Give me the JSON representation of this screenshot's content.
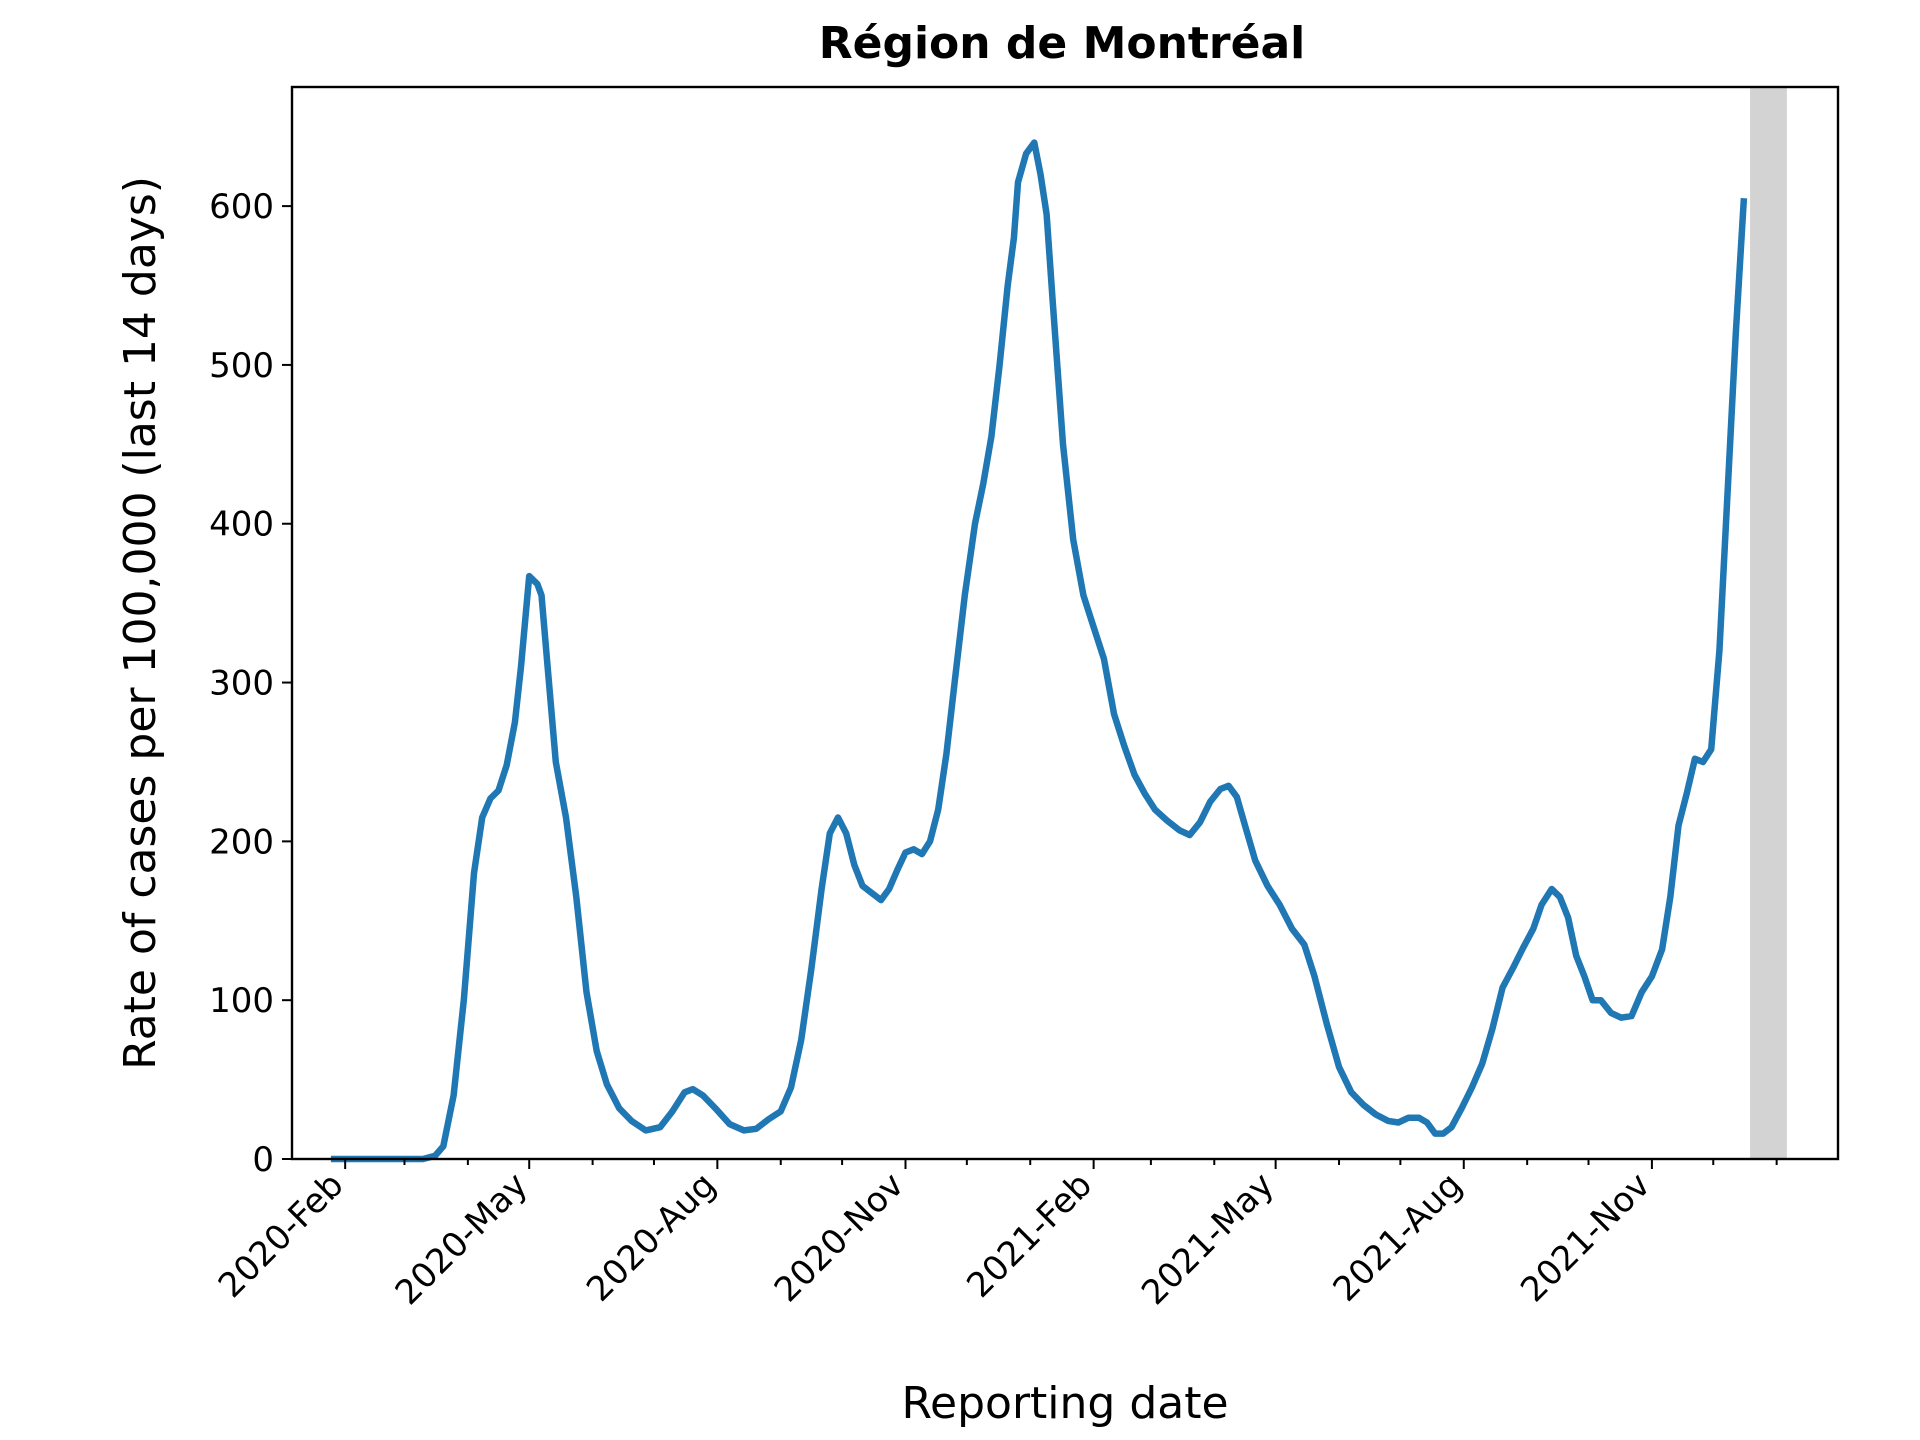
{
  "chart_data": {
    "type": "line",
    "title": "Région de Montréal",
    "xlabel": "Reporting date",
    "ylabel": "Rate of cases per 100,000 (last 14 days)",
    "xlim": [
      "2020-01-06",
      "2022-01-31"
    ],
    "ylim": [
      0,
      675
    ],
    "grid": false,
    "yticks": [
      0,
      100,
      200,
      300,
      400,
      500,
      600
    ],
    "xticks": [
      {
        "date": "2020-02-01",
        "label": "2020-Feb"
      },
      {
        "date": "2020-05-01",
        "label": "2020-May"
      },
      {
        "date": "2020-08-01",
        "label": "2020-Aug"
      },
      {
        "date": "2020-11-01",
        "label": "2020-Nov"
      },
      {
        "date": "2021-02-01",
        "label": "2021-Feb"
      },
      {
        "date": "2021-05-01",
        "label": "2021-May"
      },
      {
        "date": "2021-08-01",
        "label": "2021-Aug"
      },
      {
        "date": "2021-11-01",
        "label": "2021-Nov"
      }
    ],
    "minor_xticks": [
      "2020-03-01",
      "2020-04-01",
      "2020-06-01",
      "2020-07-01",
      "2020-09-01",
      "2020-10-01",
      "2020-12-01",
      "2021-01-01",
      "2021-03-01",
      "2021-04-01",
      "2021-06-01",
      "2021-07-01",
      "2021-09-01",
      "2021-10-01",
      "2021-12-01",
      "2022-01-01"
    ],
    "shaded_region": {
      "start": "2021-12-19",
      "end": "2022-01-06",
      "color": "#d3d3d3"
    },
    "series": [
      {
        "color": "#1f77b4",
        "points": [
          [
            "2020-01-25",
            0
          ],
          [
            "2020-02-20",
            0
          ],
          [
            "2020-03-10",
            0
          ],
          [
            "2020-03-16",
            2
          ],
          [
            "2020-03-20",
            8
          ],
          [
            "2020-03-25",
            40
          ],
          [
            "2020-03-30",
            100
          ],
          [
            "2020-04-04",
            180
          ],
          [
            "2020-04-08",
            215
          ],
          [
            "2020-04-12",
            227
          ],
          [
            "2020-04-16",
            232
          ],
          [
            "2020-04-20",
            248
          ],
          [
            "2020-04-24",
            275
          ],
          [
            "2020-04-27",
            310
          ],
          [
            "2020-05-01",
            367
          ],
          [
            "2020-05-05",
            362
          ],
          [
            "2020-05-07",
            355
          ],
          [
            "2020-05-10",
            310
          ],
          [
            "2020-05-14",
            250
          ],
          [
            "2020-05-19",
            215
          ],
          [
            "2020-05-24",
            165
          ],
          [
            "2020-05-29",
            105
          ],
          [
            "2020-06-03",
            68
          ],
          [
            "2020-06-08",
            47
          ],
          [
            "2020-06-14",
            32
          ],
          [
            "2020-06-20",
            24
          ],
          [
            "2020-06-27",
            18
          ],
          [
            "2020-07-04",
            20
          ],
          [
            "2020-07-10",
            30
          ],
          [
            "2020-07-16",
            42
          ],
          [
            "2020-07-20",
            44
          ],
          [
            "2020-07-25",
            40
          ],
          [
            "2020-07-31",
            32
          ],
          [
            "2020-08-07",
            22
          ],
          [
            "2020-08-14",
            18
          ],
          [
            "2020-08-20",
            19
          ],
          [
            "2020-08-26",
            25
          ],
          [
            "2020-09-01",
            30
          ],
          [
            "2020-09-06",
            45
          ],
          [
            "2020-09-11",
            75
          ],
          [
            "2020-09-16",
            120
          ],
          [
            "2020-09-21",
            170
          ],
          [
            "2020-09-25",
            205
          ],
          [
            "2020-09-29",
            215
          ],
          [
            "2020-10-03",
            205
          ],
          [
            "2020-10-07",
            185
          ],
          [
            "2020-10-11",
            172
          ],
          [
            "2020-10-15",
            168
          ],
          [
            "2020-10-20",
            163
          ],
          [
            "2020-10-24",
            170
          ],
          [
            "2020-10-28",
            182
          ],
          [
            "2020-11-01",
            193
          ],
          [
            "2020-11-05",
            195
          ],
          [
            "2020-11-09",
            192
          ],
          [
            "2020-11-13",
            200
          ],
          [
            "2020-11-17",
            220
          ],
          [
            "2020-11-21",
            255
          ],
          [
            "2020-11-25",
            300
          ],
          [
            "2020-11-30",
            355
          ],
          [
            "2020-12-05",
            400
          ],
          [
            "2020-12-09",
            425
          ],
          [
            "2020-12-13",
            455
          ],
          [
            "2020-12-17",
            500
          ],
          [
            "2020-12-21",
            550
          ],
          [
            "2020-12-24",
            580
          ],
          [
            "2020-12-26",
            615
          ],
          [
            "2020-12-30",
            633
          ],
          [
            "2021-01-03",
            640
          ],
          [
            "2021-01-06",
            620
          ],
          [
            "2021-01-09",
            595
          ],
          [
            "2021-01-12",
            540
          ],
          [
            "2021-01-17",
            450
          ],
          [
            "2021-01-22",
            390
          ],
          [
            "2021-01-27",
            355
          ],
          [
            "2021-02-01",
            335
          ],
          [
            "2021-02-06",
            315
          ],
          [
            "2021-02-11",
            280
          ],
          [
            "2021-02-16",
            260
          ],
          [
            "2021-02-21",
            242
          ],
          [
            "2021-02-26",
            230
          ],
          [
            "2021-03-03",
            220
          ],
          [
            "2021-03-09",
            213
          ],
          [
            "2021-03-15",
            207
          ],
          [
            "2021-03-20",
            204
          ],
          [
            "2021-03-25",
            212
          ],
          [
            "2021-03-30",
            225
          ],
          [
            "2021-04-04",
            233
          ],
          [
            "2021-04-08",
            235
          ],
          [
            "2021-04-12",
            228
          ],
          [
            "2021-04-16",
            210
          ],
          [
            "2021-04-21",
            188
          ],
          [
            "2021-04-27",
            172
          ],
          [
            "2021-05-03",
            160
          ],
          [
            "2021-05-09",
            145
          ],
          [
            "2021-05-15",
            135
          ],
          [
            "2021-05-20",
            115
          ],
          [
            "2021-05-26",
            85
          ],
          [
            "2021-06-01",
            58
          ],
          [
            "2021-06-07",
            42
          ],
          [
            "2021-06-13",
            34
          ],
          [
            "2021-06-19",
            28
          ],
          [
            "2021-06-25",
            24
          ],
          [
            "2021-06-30",
            23
          ],
          [
            "2021-07-05",
            26
          ],
          [
            "2021-07-10",
            26
          ],
          [
            "2021-07-14",
            23
          ],
          [
            "2021-07-18",
            16
          ],
          [
            "2021-07-22",
            16
          ],
          [
            "2021-07-26",
            20
          ],
          [
            "2021-07-31",
            32
          ],
          [
            "2021-08-05",
            45
          ],
          [
            "2021-08-10",
            60
          ],
          [
            "2021-08-15",
            82
          ],
          [
            "2021-08-20",
            108
          ],
          [
            "2021-08-25",
            120
          ],
          [
            "2021-08-30",
            133
          ],
          [
            "2021-09-04",
            145
          ],
          [
            "2021-09-08",
            160
          ],
          [
            "2021-09-13",
            170
          ],
          [
            "2021-09-17",
            165
          ],
          [
            "2021-09-21",
            152
          ],
          [
            "2021-09-25",
            128
          ],
          [
            "2021-09-29",
            115
          ],
          [
            "2021-10-03",
            100
          ],
          [
            "2021-10-07",
            100
          ],
          [
            "2021-10-12",
            92
          ],
          [
            "2021-10-17",
            89
          ],
          [
            "2021-10-22",
            90
          ],
          [
            "2021-10-27",
            105
          ],
          [
            "2021-11-01",
            115
          ],
          [
            "2021-11-06",
            132
          ],
          [
            "2021-11-10",
            165
          ],
          [
            "2021-11-14",
            210
          ],
          [
            "2021-11-18",
            230
          ],
          [
            "2021-11-22",
            252
          ],
          [
            "2021-11-26",
            250
          ],
          [
            "2021-11-30",
            258
          ],
          [
            "2021-12-04",
            320
          ],
          [
            "2021-12-08",
            420
          ],
          [
            "2021-12-12",
            520
          ],
          [
            "2021-12-16",
            605
          ]
        ]
      }
    ]
  }
}
